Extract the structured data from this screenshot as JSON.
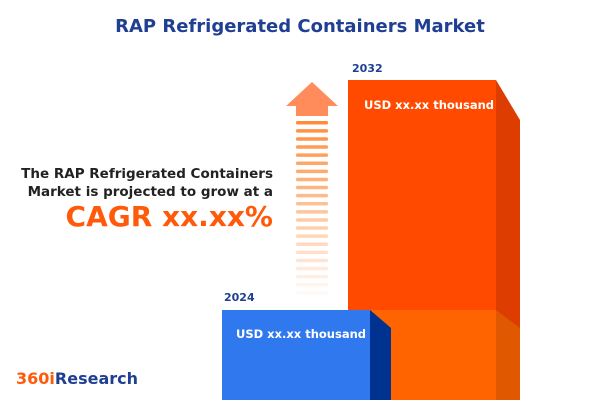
{
  "title": "RAP Refrigerated Containers Market",
  "description_line1": "The RAP Refrigerated Containers",
  "description_line2": "Market is projected to grow at a",
  "cagr": "CAGR xx.xx%",
  "bars": [
    {
      "year": "2024",
      "value": "USD xx.xx thousand",
      "color": "#2f78ee"
    },
    {
      "year": "2032",
      "value": "USD xx.xx thousand",
      "color": "#ff4a00"
    }
  ],
  "arrow_icon": "up-arrow-icon",
  "logo": {
    "prefix": "360i",
    "suffix": "Research"
  }
}
